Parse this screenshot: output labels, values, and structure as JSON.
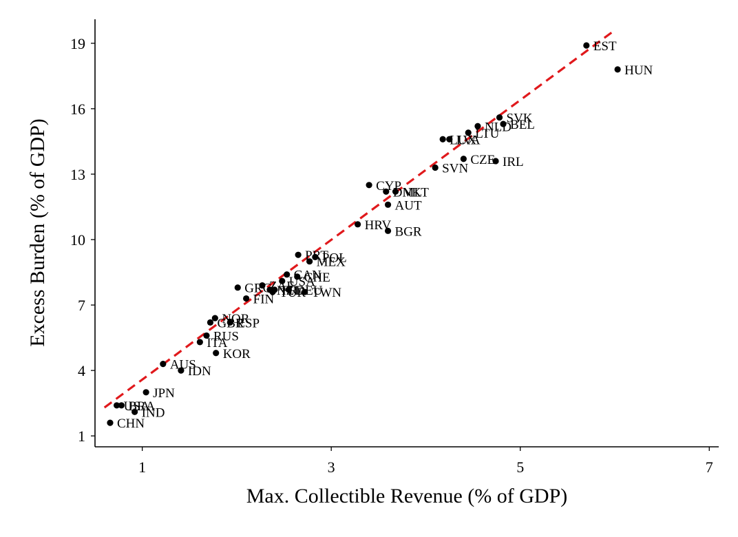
{
  "chart_data": {
    "type": "scatter",
    "xlabel": "Max. Collectible Revenue (% of GDP)",
    "ylabel": "Excess Burden (% of GDP)",
    "xlim": [
      0.5,
      7.1
    ],
    "ylim": [
      0.5,
      20.1
    ],
    "xticks": [
      1,
      3,
      5,
      7
    ],
    "yticks": [
      1,
      4,
      7,
      10,
      13,
      16,
      19
    ],
    "grid": false,
    "legend": "none",
    "point_color": "#000000",
    "fit_line": {
      "color": "#e0191c",
      "style": "dashed",
      "x": [
        0.6,
        6.0
      ],
      "y": [
        2.3,
        19.6
      ]
    },
    "points": [
      {
        "label": "EST",
        "x": 5.7,
        "y": 18.9
      },
      {
        "label": "HUN",
        "x": 6.03,
        "y": 17.8
      },
      {
        "label": "SVK",
        "x": 4.78,
        "y": 15.6
      },
      {
        "label": "BEL",
        "x": 4.82,
        "y": 15.3
      },
      {
        "label": "NLD",
        "x": 4.55,
        "y": 15.2
      },
      {
        "label": "LTU",
        "x": 4.45,
        "y": 14.9
      },
      {
        "label": "LVA",
        "x": 4.25,
        "y": 14.6
      },
      {
        "label": "LUX",
        "x": 4.18,
        "y": 14.6
      },
      {
        "label": "CZE",
        "x": 4.4,
        "y": 13.7
      },
      {
        "label": "IRL",
        "x": 4.74,
        "y": 13.6
      },
      {
        "label": "SVN",
        "x": 4.1,
        "y": 13.3
      },
      {
        "label": "CYP",
        "x": 3.4,
        "y": 12.5
      },
      {
        "label": "DNK",
        "x": 3.58,
        "y": 12.2
      },
      {
        "label": "MLT",
        "x": 3.68,
        "y": 12.2
      },
      {
        "label": "AUT",
        "x": 3.6,
        "y": 11.6
      },
      {
        "label": "HRV",
        "x": 3.28,
        "y": 10.7
      },
      {
        "label": "BGR",
        "x": 3.6,
        "y": 10.4
      },
      {
        "label": "PRT",
        "x": 2.65,
        "y": 9.3
      },
      {
        "label": "POL",
        "x": 2.83,
        "y": 9.2
      },
      {
        "label": "MEX",
        "x": 2.77,
        "y": 9.0
      },
      {
        "label": "CAN",
        "x": 2.53,
        "y": 8.4
      },
      {
        "label": "CHE",
        "x": 2.64,
        "y": 8.3
      },
      {
        "label": "USA",
        "x": 2.48,
        "y": 8.1
      },
      {
        "label": "GRC",
        "x": 2.01,
        "y": 7.8
      },
      {
        "label": "ZAF",
        "x": 2.27,
        "y": 7.9
      },
      {
        "label": "NZL",
        "x": 2.35,
        "y": 7.7
      },
      {
        "label": "FRA",
        "x": 2.4,
        "y": 7.7
      },
      {
        "label": "DEU",
        "x": 2.55,
        "y": 7.7
      },
      {
        "label": "TUR",
        "x": 2.38,
        "y": 7.6
      },
      {
        "label": "TWN",
        "x": 2.72,
        "y": 7.6
      },
      {
        "label": "FIN",
        "x": 2.1,
        "y": 7.3
      },
      {
        "label": "NOR",
        "x": 1.77,
        "y": 6.4
      },
      {
        "label": "GBR",
        "x": 1.72,
        "y": 6.2
      },
      {
        "label": "ESP",
        "x": 1.93,
        "y": 6.2
      },
      {
        "label": "RUS",
        "x": 1.68,
        "y": 5.6
      },
      {
        "label": "ITA",
        "x": 1.61,
        "y": 5.3
      },
      {
        "label": "KOR",
        "x": 1.78,
        "y": 4.8
      },
      {
        "label": "AUS",
        "x": 1.22,
        "y": 4.3
      },
      {
        "label": "IDN",
        "x": 1.41,
        "y": 4.0
      },
      {
        "label": "JPN",
        "x": 1.04,
        "y": 3.0
      },
      {
        "label": "BRA",
        "x": 0.78,
        "y": 2.4
      },
      {
        "label": "USA",
        "x": 0.73,
        "y": 2.4
      },
      {
        "label": "IND",
        "x": 0.92,
        "y": 2.1
      },
      {
        "label": "CHN",
        "x": 0.66,
        "y": 1.6
      }
    ]
  }
}
